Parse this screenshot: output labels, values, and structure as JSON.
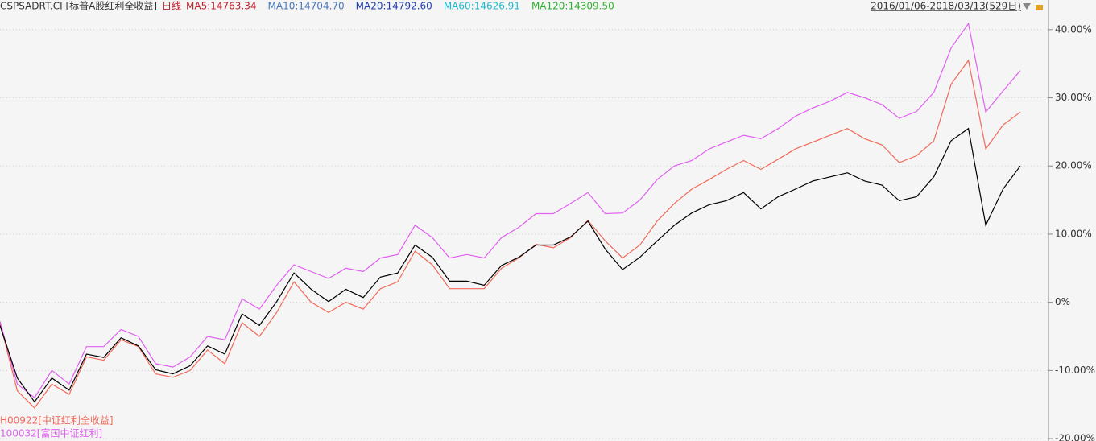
{
  "chart_data": {
    "type": "line",
    "header": {
      "code": "CSPSADRT.CI [标普A股红利全收益]",
      "period": "日线",
      "ma": [
        {
          "text": "MA5:14763.34",
          "color": "#c0202a"
        },
        {
          "text": "MA10:14704.70",
          "color": "#4a78b8"
        },
        {
          "text": "MA20:14792.60",
          "color": "#1f3fb0"
        },
        {
          "text": "MA60:14626.91",
          "color": "#20b8d0"
        },
        {
          "text": "MA120:14309.50",
          "color": "#30b030"
        }
      ],
      "range": "2016/01/06-2018/03/13(529日)"
    },
    "categories": [
      null,
      null,
      null,
      null,
      null,
      null,
      null,
      null,
      null,
      null,
      null,
      null,
      null,
      null,
      null,
      null,
      null,
      null,
      null,
      null,
      null,
      null,
      null,
      null,
      null,
      null,
      null,
      null,
      null,
      null,
      null,
      null,
      null,
      null,
      null,
      null,
      null,
      null,
      null,
      null,
      null,
      null,
      null,
      null,
      null,
      null,
      null,
      null,
      null,
      null,
      null,
      null,
      null,
      null,
      null,
      null,
      null,
      null,
      null,
      null
    ],
    "series": [
      {
        "name": "H00922[中证红利全收益]",
        "color": "#f06a5a",
        "values": [
          -3.0,
          -13.0,
          -15.5,
          -12.0,
          -13.5,
          -8.0,
          -8.5,
          -5.5,
          -6.5,
          -10.5,
          -11.0,
          -10.0,
          -7.0,
          -9.0,
          -3.0,
          -5.0,
          -1.5,
          3.0,
          0.0,
          -1.5,
          0.0,
          -1.0,
          2.0,
          3.0,
          7.5,
          5.5,
          2.0,
          2.0,
          2.0,
          5.0,
          6.5,
          8.5,
          8.0,
          9.5,
          12.0,
          9.0,
          6.5,
          8.4,
          11.9,
          14.5,
          16.6,
          18.0,
          19.5,
          20.8,
          19.5,
          21.0,
          22.5,
          23.5,
          24.5,
          25.5,
          24.0,
          23.1,
          20.5,
          21.5,
          23.7,
          32.0,
          35.5,
          22.5,
          26.0,
          27.9
        ]
      },
      {
        "name": "100032[富国中证红利]",
        "color": "#e060f0",
        "values": [
          -2.8,
          -12.0,
          -14.0,
          -10.0,
          -12.0,
          -6.5,
          -6.5,
          -4.0,
          -5.0,
          -9.0,
          -9.5,
          -8.0,
          -5.0,
          -5.5,
          0.5,
          -1.0,
          2.5,
          5.5,
          4.5,
          3.5,
          5.0,
          4.5,
          6.5,
          7.0,
          11.3,
          9.5,
          6.5,
          7.0,
          6.5,
          9.5,
          11.0,
          13.0,
          13.0,
          14.5,
          16.1,
          13.0,
          13.1,
          15.0,
          18.0,
          20.0,
          20.8,
          22.5,
          23.5,
          24.5,
          24.0,
          25.5,
          27.3,
          28.5,
          29.5,
          30.8,
          30.0,
          29.0,
          27.0,
          28.0,
          30.8,
          37.3,
          40.9,
          27.9,
          31.0,
          34.0
        ]
      },
      {
        "color": "#000000",
        "values": [
          -3.4,
          -11.1,
          -14.6,
          -11.1,
          -12.9,
          -7.6,
          -8.1,
          -5.2,
          -6.4,
          -9.9,
          -10.5,
          -9.3,
          -6.4,
          -7.6,
          -1.7,
          -3.4,
          0.1,
          4.3,
          1.9,
          0.1,
          1.9,
          0.7,
          3.7,
          4.3,
          8.4,
          6.6,
          3.1,
          3.1,
          2.5,
          5.4,
          6.6,
          8.4,
          8.4,
          9.6,
          11.9,
          7.8,
          4.8,
          6.6,
          9.0,
          11.3,
          13.1,
          14.3,
          14.9,
          16.1,
          13.7,
          15.5,
          16.6,
          17.8,
          18.4,
          19.0,
          17.8,
          17.2,
          14.9,
          15.5,
          18.4,
          23.7,
          25.5,
          11.3,
          16.6,
          20.0
        ]
      }
    ],
    "ylim": [
      -20.35,
      44.35
    ],
    "yticks": [
      {
        "value": 40,
        "label": "40.00%"
      },
      {
        "value": 30,
        "label": "30.00%"
      },
      {
        "value": 20,
        "label": "20.00%"
      },
      {
        "value": 10,
        "label": "10.00%"
      },
      {
        "value": 0,
        "label": "0%"
      },
      {
        "value": -10,
        "label": "-10.00%"
      },
      {
        "value": -20,
        "label": "-20.00%"
      }
    ],
    "grid": true
  }
}
